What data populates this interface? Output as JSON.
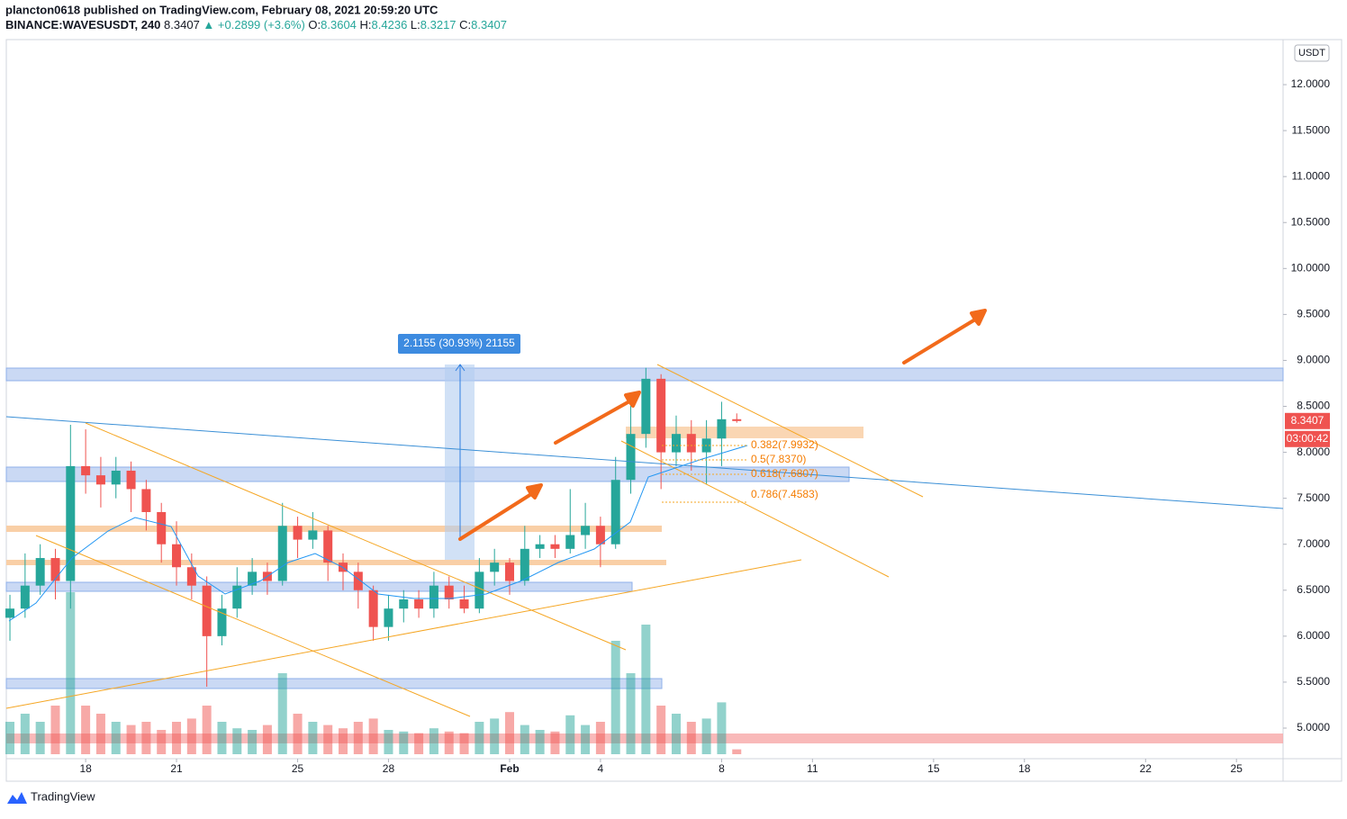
{
  "header": {
    "publisher": "plancton0618 published on TradingView.com, February 08, 2021 20:59:20 UTC",
    "symbol": "BINANCE:WAVESUSDT, 240",
    "last": "8.3407",
    "arrow": "▲",
    "change": "+0.2899 (+3.6%)",
    "o_label": "O:",
    "o": "8.3604",
    "h_label": "H:",
    "h": "8.4236",
    "l_label": "L:",
    "l": "8.3217",
    "c_label": "C:",
    "c": "8.3407"
  },
  "chart_data": {
    "type": "candlestick",
    "x": [
      15.5,
      16,
      16.5,
      17,
      17.5,
      18,
      18.5,
      19,
      19.5,
      20,
      20.5,
      21,
      21.5,
      22,
      22.5,
      23,
      23.5,
      24,
      24.5,
      25,
      25.5,
      26,
      26.5,
      27,
      27.5,
      28,
      28.5,
      29,
      29.5,
      30,
      30.5,
      31,
      31.5,
      32,
      32.5,
      33,
      33.5,
      34,
      34.5,
      35,
      35.5,
      36,
      36.5,
      37,
      37.5,
      38,
      38.5,
      39,
      39.5
    ],
    "open": [
      6.2,
      6.3,
      6.55,
      6.85,
      6.6,
      7.85,
      7.75,
      7.65,
      7.8,
      7.6,
      7.35,
      7,
      6.75,
      6.55,
      6,
      6.3,
      6.55,
      6.7,
      6.6,
      7.2,
      7.05,
      7.15,
      6.8,
      6.7,
      6.5,
      6.1,
      6.3,
      6.4,
      6.3,
      6.55,
      6.4,
      6.3,
      6.7,
      6.8,
      6.6,
      6.95,
      7,
      6.95,
      7.1,
      7.2,
      7,
      7.7,
      8.2,
      8.8,
      8,
      8.2,
      8,
      8.15,
      8.3604
    ],
    "high": [
      6.45,
      6.9,
      7,
      6.95,
      8.3,
      8.25,
      7.95,
      7.95,
      7.9,
      7.7,
      7.45,
      7.25,
      6.9,
      6.65,
      6.45,
      6.75,
      6.85,
      6.8,
      7.45,
      7.3,
      7.35,
      7.2,
      6.9,
      6.8,
      6.55,
      6.45,
      6.5,
      6.5,
      6.7,
      6.65,
      6.55,
      6.85,
      6.95,
      6.85,
      7.2,
      7.1,
      7.1,
      7.6,
      7.45,
      7.3,
      7.95,
      8.55,
      8.92,
      8.85,
      8.4,
      8.35,
      8.35,
      8.55,
      8.4236
    ],
    "low": [
      5.95,
      6.2,
      6.45,
      6.4,
      6.3,
      7.55,
      7.4,
      7.5,
      7.35,
      7.15,
      6.8,
      6.55,
      6.4,
      5.45,
      5.9,
      6.2,
      6.45,
      6.45,
      6.55,
      6.85,
      6.95,
      6.6,
      6.5,
      6.3,
      5.95,
      5.95,
      6.15,
      6.2,
      6.2,
      6.3,
      6.25,
      6.25,
      6.55,
      6.45,
      6.55,
      6.85,
      6.85,
      6.9,
      6.95,
      6.75,
      6.95,
      7.55,
      8.05,
      7.6,
      7.85,
      7.8,
      7.65,
      7.85,
      8.3217
    ],
    "close": [
      6.3,
      6.55,
      6.85,
      6.6,
      7.85,
      7.75,
      7.65,
      7.8,
      7.6,
      7.35,
      7,
      6.75,
      6.55,
      6,
      6.3,
      6.55,
      6.7,
      6.6,
      7.2,
      7.05,
      7.15,
      6.8,
      6.7,
      6.5,
      6.1,
      6.3,
      6.4,
      6.3,
      6.55,
      6.4,
      6.3,
      6.7,
      6.8,
      6.6,
      6.95,
      7,
      6.95,
      7.1,
      7.2,
      7,
      7.7,
      8.2,
      8.8,
      8,
      8.2,
      8,
      8.15,
      8.36,
      8.3407
    ],
    "volume": [
      2,
      2.5,
      2,
      3,
      10,
      3,
      2.5,
      2,
      1.8,
      2,
      1.5,
      2,
      2.2,
      3,
      2,
      1.6,
      1.5,
      1.8,
      5,
      2.5,
      2,
      1.8,
      1.6,
      2,
      2.2,
      1.5,
      1.4,
      1.3,
      1.6,
      1.4,
      1.3,
      2,
      2.2,
      2.6,
      1.8,
      1.5,
      1.4,
      2.4,
      1.8,
      2,
      7,
      5,
      8,
      3,
      2.5,
      2,
      2.2,
      3.2,
      0.3
    ],
    "up_color": "#26a69a",
    "down_color": "#ef5350",
    "xlim": [
      15.38,
      57.54
    ],
    "ylim": [
      4.667,
      12.49
    ],
    "xticks": [
      18,
      21,
      25,
      28,
      {
        "value": 32,
        "label": "Feb"
      },
      {
        "value": 35,
        "label": "4"
      },
      {
        "value": 39,
        "label": "8"
      },
      {
        "value": 42,
        "label": "11"
      },
      {
        "value": 46,
        "label": "15"
      },
      {
        "value": 49,
        "label": "18"
      },
      {
        "value": 53,
        "label": "22"
      },
      {
        "value": 56,
        "label": "25"
      }
    ],
    "yticks": [
      {
        "value": 5,
        "label": "5.0000"
      },
      {
        "value": 5.5,
        "label": "5.5000"
      },
      {
        "value": 6,
        "label": "6.0000"
      },
      {
        "value": 6.5,
        "label": "6.5000"
      },
      {
        "value": 7,
        "label": "7.0000"
      },
      {
        "value": 7.5,
        "label": "7.5000"
      },
      {
        "value": 8,
        "label": "8.0000"
      },
      {
        "value": 8.5,
        "label": "8.5000"
      },
      {
        "value": 9,
        "label": "9.0000"
      },
      {
        "value": 9.5,
        "label": "9.5000"
      },
      {
        "value": 10,
        "label": "10.0000"
      },
      {
        "value": 10.5,
        "label": "10.5000"
      },
      {
        "value": 11,
        "label": "11.0000"
      },
      {
        "value": 11.5,
        "label": "11.5000"
      },
      {
        "value": 12,
        "label": "12.0000"
      }
    ],
    "currency": "USDT",
    "countdown": "03:00:42",
    "measure_label": "2.1155 (30.93%) 21155",
    "fib_labels": [
      "0.382(7.9932)",
      "0.5(7.8370)",
      "0.618(7.6807)",
      "0.786(7.4583)"
    ]
  },
  "footer": {
    "brand": "TradingView"
  }
}
